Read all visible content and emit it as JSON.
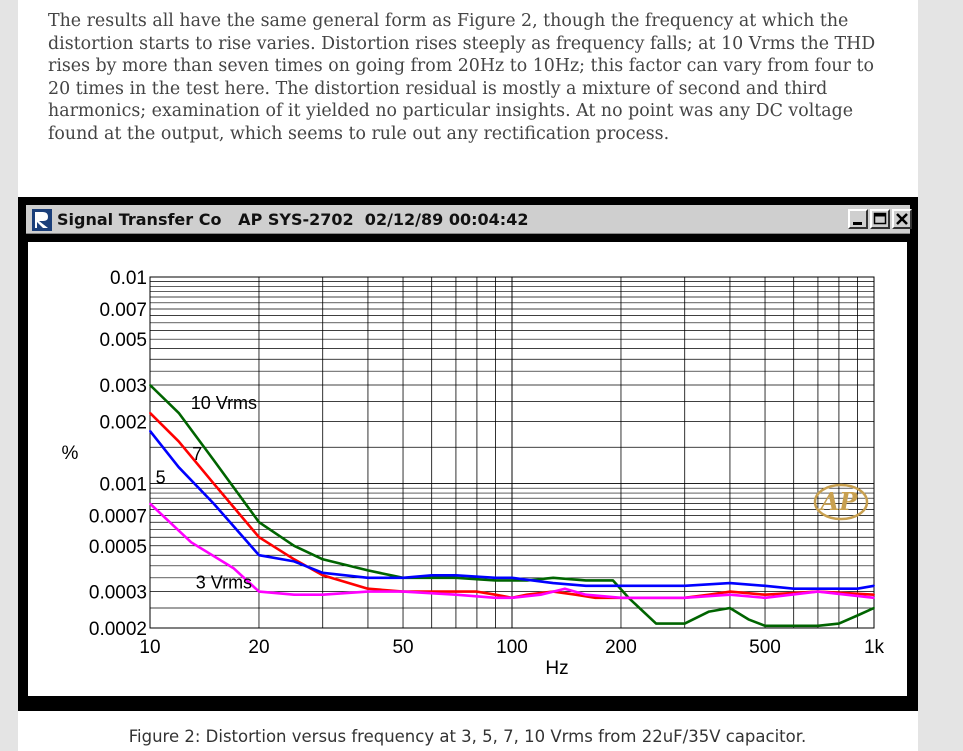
{
  "article": {
    "paragraph": "The results all have the same general form as Figure 2, though the frequency at which the distortion starts to rise varies. Distortion rises steeply as frequency falls; at 10 Vrms the THD rises by more than seven times on going from 20Hz to 10Hz; this factor can vary from four to 20 times in the test here. The distortion residual is mostly a mixture of second and third harmonics; examination of it yielded no particular insights. At no point was any DC voltage found at the output, which seems to rule out any rectification process.",
    "caption": "Figure 2: Distortion versus frequency at 3, 5, 7, 10 Vrms from 22uF/35V capacitor."
  },
  "window": {
    "title": "Signal Transfer Co   AP SYS-2702  02/12/89 00:04:42",
    "watermark": "AP"
  },
  "chart_data": {
    "type": "line",
    "xlabel": "Hz",
    "ylabel": "%",
    "x_scale": "log",
    "y_scale": "log",
    "xlim": [
      10,
      1000
    ],
    "ylim": [
      0.0002,
      0.01
    ],
    "grid": true,
    "x_ticks": [
      {
        "value": 10,
        "label": "10"
      },
      {
        "value": 20,
        "label": "20"
      },
      {
        "value": 50,
        "label": "50"
      },
      {
        "value": 100,
        "label": "100"
      },
      {
        "value": 200,
        "label": "200"
      },
      {
        "value": 500,
        "label": "500"
      },
      {
        "value": 1000,
        "label": "1k"
      }
    ],
    "y_ticks": [
      {
        "value": 0.01,
        "label": "0.01"
      },
      {
        "value": 0.007,
        "label": "0.007"
      },
      {
        "value": 0.005,
        "label": "0.005"
      },
      {
        "value": 0.003,
        "label": "0.003"
      },
      {
        "value": 0.002,
        "label": "0.002"
      },
      {
        "value": 0.001,
        "label": "0.001"
      },
      {
        "value": 0.0007,
        "label": "0.0007"
      },
      {
        "value": 0.0005,
        "label": "0.0005"
      },
      {
        "value": 0.0003,
        "label": "0.0003"
      },
      {
        "value": 0.0002,
        "label": "0.0002"
      }
    ],
    "series": [
      {
        "name": "10 Vrms",
        "color": "#006400",
        "points": [
          [
            10,
            0.003
          ],
          [
            12,
            0.0022
          ],
          [
            15,
            0.0013
          ],
          [
            20,
            0.00065
          ],
          [
            25,
            0.0005
          ],
          [
            30,
            0.00043
          ],
          [
            40,
            0.00038
          ],
          [
            50,
            0.00035
          ],
          [
            70,
            0.00035
          ],
          [
            90,
            0.00034
          ],
          [
            100,
            0.00034
          ],
          [
            110,
            0.00034
          ],
          [
            130,
            0.00035
          ],
          [
            160,
            0.00034
          ],
          [
            190,
            0.00034
          ],
          [
            210,
            0.00028
          ],
          [
            250,
            0.00021
          ],
          [
            300,
            0.00021
          ],
          [
            350,
            0.00024
          ],
          [
            400,
            0.00025
          ],
          [
            450,
            0.00022
          ],
          [
            500,
            0.000205
          ],
          [
            700,
            0.000205
          ],
          [
            800,
            0.00021
          ],
          [
            900,
            0.00023
          ],
          [
            1000,
            0.00025
          ]
        ]
      },
      {
        "name": "7",
        "color": "#ff0000",
        "points": [
          [
            10,
            0.0022
          ],
          [
            12,
            0.0016
          ],
          [
            15,
            0.001
          ],
          [
            20,
            0.00055
          ],
          [
            25,
            0.00043
          ],
          [
            30,
            0.00036
          ],
          [
            40,
            0.00031
          ],
          [
            50,
            0.0003
          ],
          [
            70,
            0.0003
          ],
          [
            80,
            0.0003
          ],
          [
            90,
            0.00029
          ],
          [
            100,
            0.00028
          ],
          [
            110,
            0.00029
          ],
          [
            130,
            0.0003
          ],
          [
            150,
            0.00029
          ],
          [
            170,
            0.00028
          ],
          [
            200,
            0.00028
          ],
          [
            300,
            0.00028
          ],
          [
            350,
            0.00029
          ],
          [
            400,
            0.0003
          ],
          [
            500,
            0.00029
          ],
          [
            700,
            0.0003
          ],
          [
            1000,
            0.00029
          ]
        ]
      },
      {
        "name": "5",
        "color": "#0000ff",
        "points": [
          [
            10,
            0.0018
          ],
          [
            12,
            0.0012
          ],
          [
            15,
            0.0008
          ],
          [
            20,
            0.00045
          ],
          [
            25,
            0.00042
          ],
          [
            30,
            0.00037
          ],
          [
            40,
            0.00035
          ],
          [
            50,
            0.00035
          ],
          [
            60,
            0.00036
          ],
          [
            70,
            0.00036
          ],
          [
            90,
            0.00035
          ],
          [
            100,
            0.00035
          ],
          [
            130,
            0.00033
          ],
          [
            160,
            0.00032
          ],
          [
            200,
            0.00032
          ],
          [
            300,
            0.00032
          ],
          [
            400,
            0.00033
          ],
          [
            500,
            0.00032
          ],
          [
            600,
            0.00031
          ],
          [
            700,
            0.00031
          ],
          [
            800,
            0.00031
          ],
          [
            900,
            0.00031
          ],
          [
            1000,
            0.00032
          ]
        ]
      },
      {
        "name": "3 Vrms",
        "color": "#ff00ff",
        "points": [
          [
            10,
            0.0008
          ],
          [
            13,
            0.00052
          ],
          [
            17,
            0.00039
          ],
          [
            20,
            0.0003
          ],
          [
            25,
            0.00029
          ],
          [
            30,
            0.00029
          ],
          [
            40,
            0.0003
          ],
          [
            50,
            0.0003
          ],
          [
            70,
            0.00029
          ],
          [
            90,
            0.00028
          ],
          [
            100,
            0.00028
          ],
          [
            120,
            0.00029
          ],
          [
            140,
            0.00031
          ],
          [
            160,
            0.00029
          ],
          [
            200,
            0.00028
          ],
          [
            300,
            0.00028
          ],
          [
            400,
            0.00029
          ],
          [
            500,
            0.00028
          ],
          [
            700,
            0.0003
          ],
          [
            1000,
            0.00028
          ]
        ]
      }
    ],
    "annotations": [
      {
        "text": "10 Vrms",
        "x": 16,
        "y": 0.0023
      },
      {
        "text": "7",
        "x": 13.5,
        "y": 0.0013
      },
      {
        "text": "5",
        "x": 10.7,
        "y": 0.001
      },
      {
        "text": "3 Vrms",
        "x": 16,
        "y": 0.00031
      }
    ]
  }
}
